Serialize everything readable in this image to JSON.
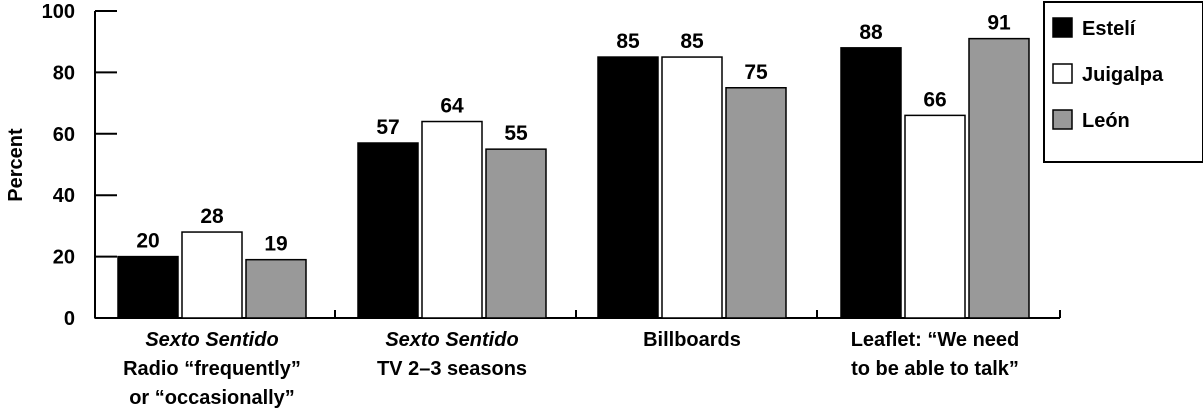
{
  "chart_data": {
    "type": "bar",
    "ylabel": "Percent",
    "ylim": [
      0,
      100
    ],
    "yticks": [
      0,
      20,
      40,
      60,
      80,
      100
    ],
    "categories": [
      {
        "lines": [
          {
            "text": "Sexto Sentido",
            "italic": true
          },
          {
            "text": "Radio “frequently”",
            "italic": false
          },
          {
            "text": "or “occasionally”",
            "italic": false
          }
        ]
      },
      {
        "lines": [
          {
            "text": "Sexto Sentido",
            "italic": true
          },
          {
            "text": "TV 2–3 seasons",
            "italic": false
          }
        ]
      },
      {
        "lines": [
          {
            "text": "Billboards",
            "italic": false
          }
        ]
      },
      {
        "lines": [
          {
            "text": "Leaflet: “We need",
            "italic": false
          },
          {
            "text": "to be able to talk”",
            "italic": false
          }
        ]
      }
    ],
    "series": [
      {
        "name": "Estelí",
        "color": "#000000",
        "values": [
          20,
          57,
          85,
          88
        ]
      },
      {
        "name": "Juigalpa",
        "color": "#ffffff",
        "values": [
          28,
          64,
          85,
          66
        ]
      },
      {
        "name": "León",
        "color": "#999999",
        "values": [
          19,
          55,
          75,
          91
        ]
      }
    ],
    "legend_position": "top-right",
    "grid": false
  }
}
